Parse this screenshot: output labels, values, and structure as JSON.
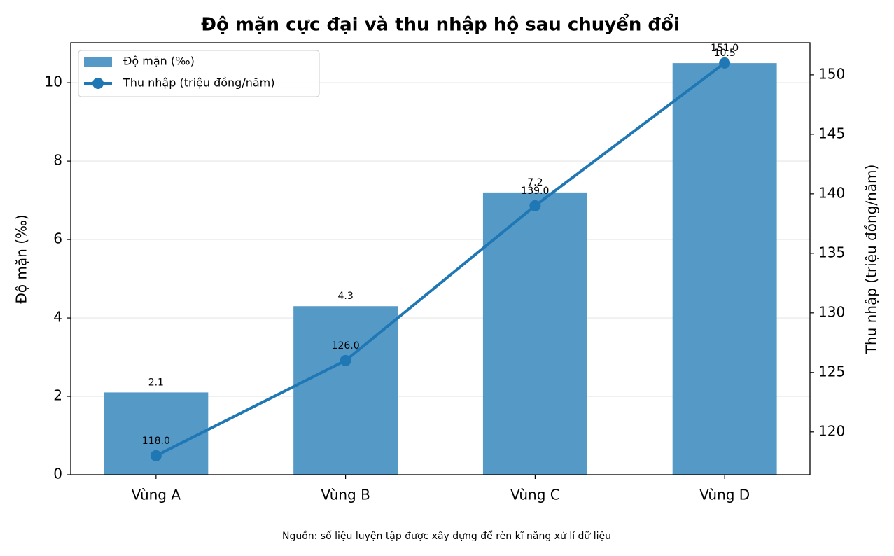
{
  "chart_data": {
    "type": "bar",
    "title": "Độ mặn cực đại và thu nhập hộ sau chuyển đổi",
    "ylabel": "Độ mặn (‰)",
    "y2label": "Thu nhập (triệu đồng/năm)",
    "note": "Nguồn: số liệu luyện tập được xây dựng để rèn kĩ năng xử lí dữ liệu",
    "categories": [
      "Vùng A",
      "Vùng B",
      "Vùng C",
      "Vùng D"
    ],
    "series": [
      {
        "name": "Độ mặn (‰)",
        "type": "bar",
        "color": "#5599c7",
        "values": [
          2.1,
          4.3,
          7.2,
          10.5
        ]
      },
      {
        "name": "Thu nhập (triệu đồng/năm)",
        "type": "line",
        "axis": "y2",
        "color": "#1f77b4",
        "values": [
          118,
          126,
          139,
          151
        ],
        "value_labels": [
          "118.0",
          "126.0",
          "139.0",
          "151.0"
        ]
      }
    ],
    "ylim": [
      0,
      11.02
    ],
    "yticks": [
      0,
      2,
      4,
      6,
      8,
      10
    ],
    "y2lim": [
      116.4,
      152.7
    ],
    "y2ticks": [
      120,
      125,
      130,
      135,
      140,
      145,
      150
    ],
    "grid": true,
    "legend": "upper left"
  }
}
